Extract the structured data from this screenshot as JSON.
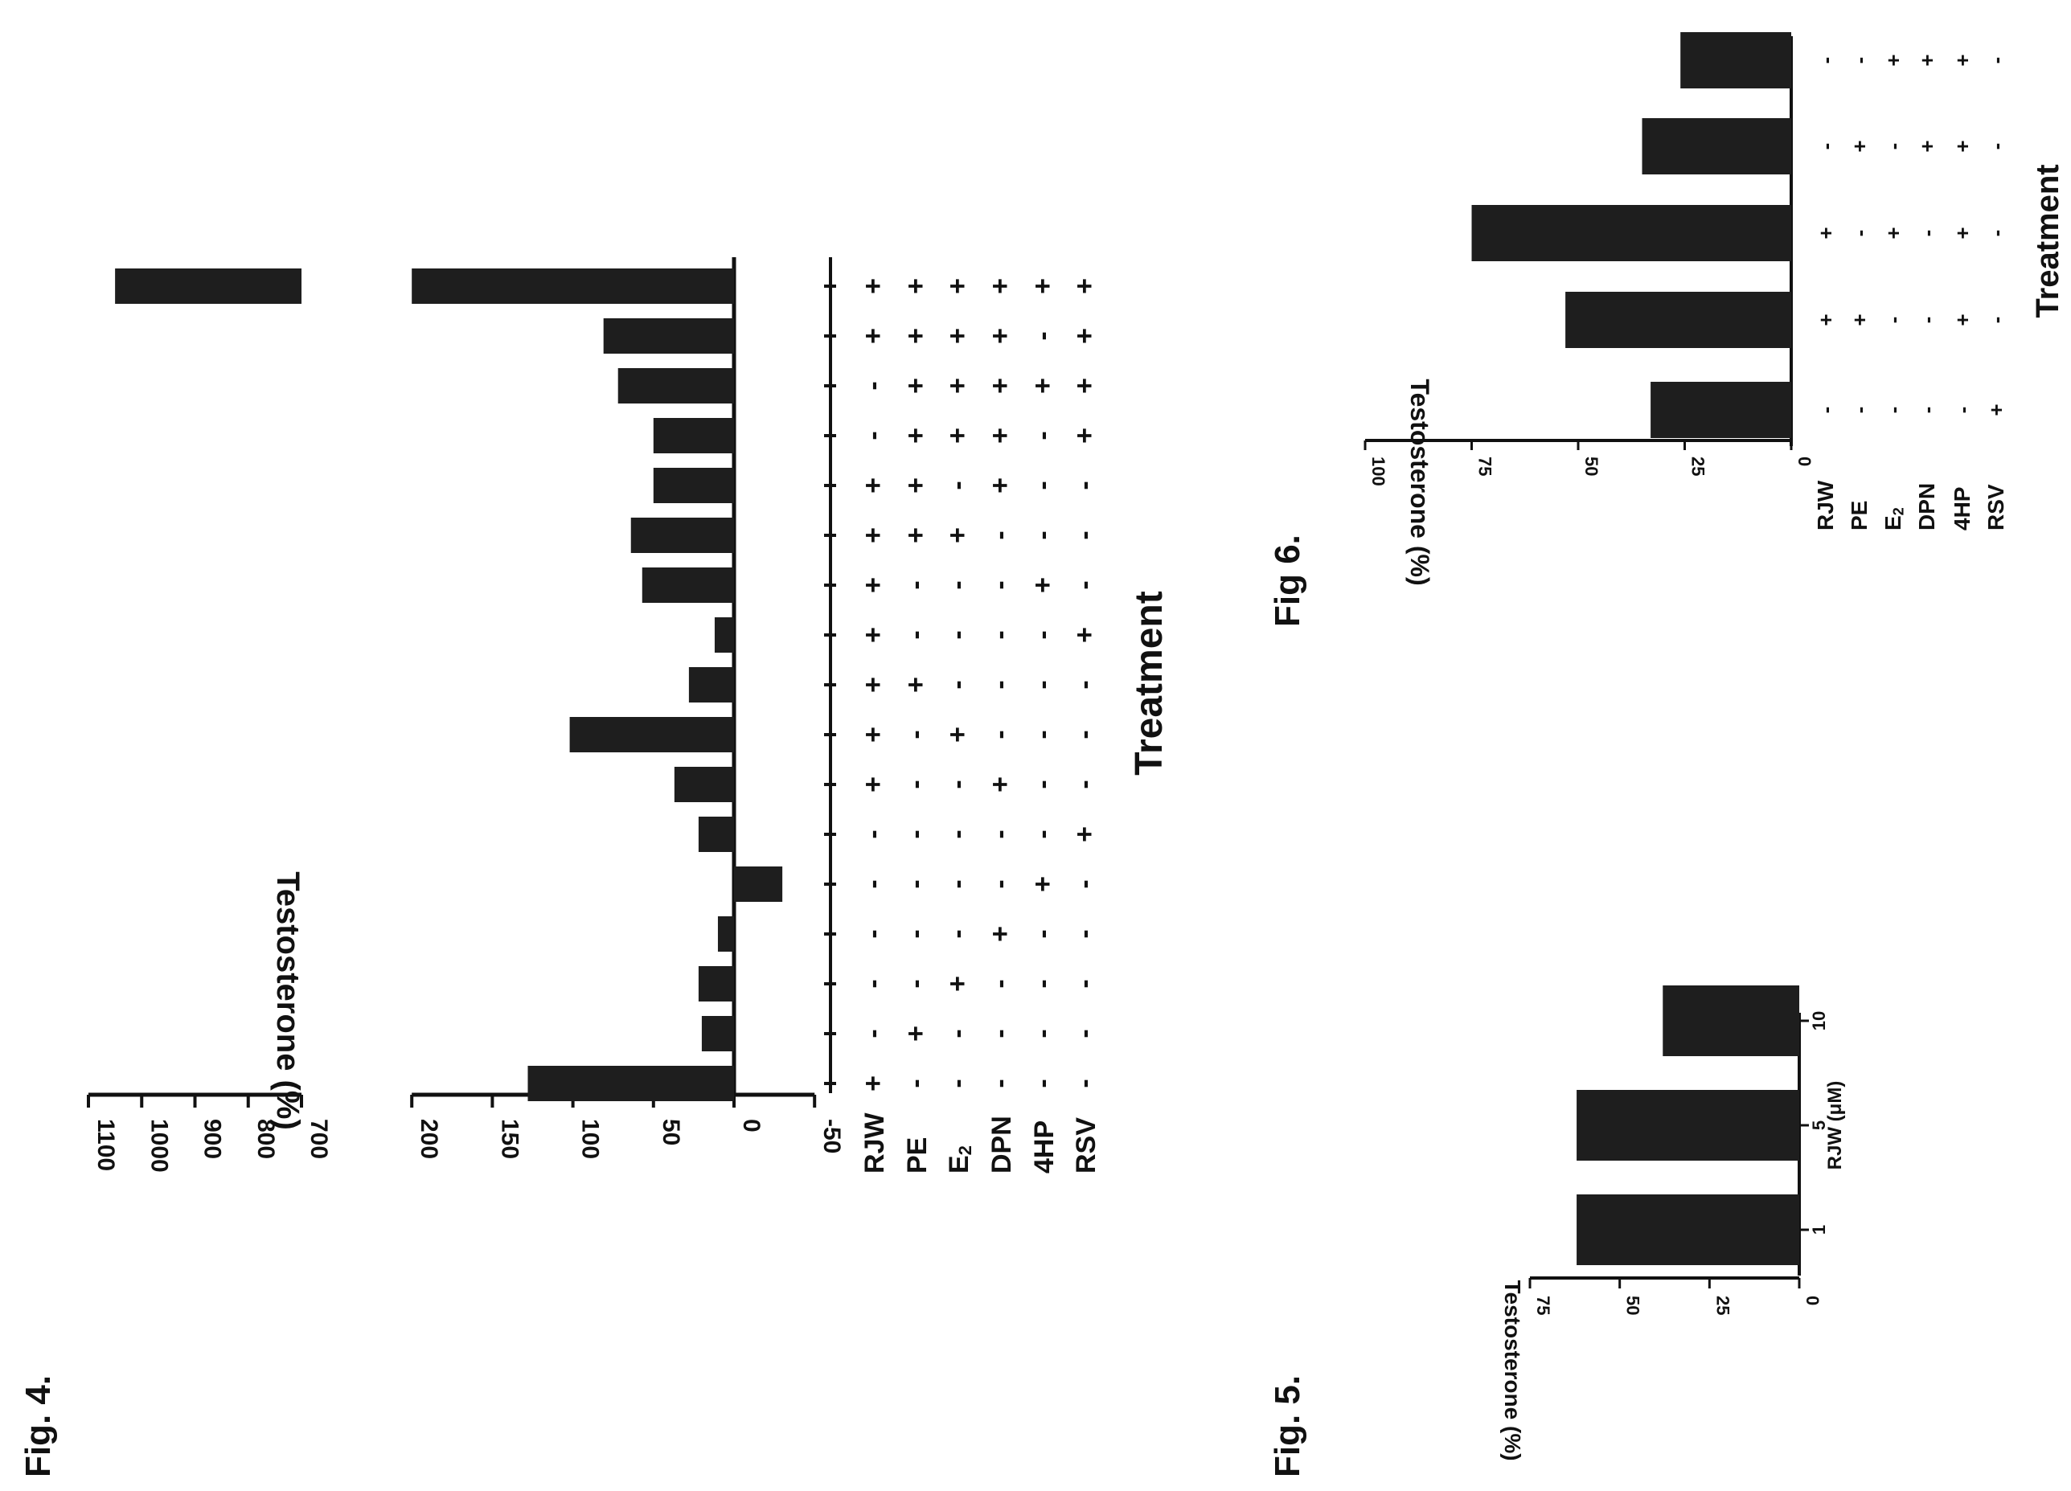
{
  "fig4_label": "Fig. 4.",
  "fig5_label": "Fig. 5.",
  "fig6_label": "Fig 6.",
  "colors": {
    "bar": "#1e1e1e",
    "ink": "#111111",
    "background": "#ffffff"
  },
  "chart_data": [
    {
      "id": "fig4",
      "type": "bar",
      "orientation": "rotated 90 degrees (figure printed sideways)",
      "ylabel": "Testosterone (%)",
      "xlabel": "Treatment",
      "axis_break": true,
      "ylim": [
        -50,
        1100
      ],
      "lower_segment": {
        "range": [
          -50,
          200
        ],
        "ticks": [
          "-50",
          "0",
          "50",
          "100",
          "150",
          "200"
        ],
        "tick_values": [
          -50,
          0,
          50,
          100,
          150,
          200
        ]
      },
      "upper_segment": {
        "range": [
          700,
          1100
        ],
        "ticks": [
          "700",
          "800",
          "900",
          "1000",
          "1100"
        ],
        "tick_values": [
          700,
          800,
          900,
          1000,
          1100
        ]
      },
      "treatment_labels": [
        "RJW",
        "PE",
        "E2",
        "DPN",
        "4HP",
        "RSV"
      ],
      "treatment_matrix": [
        [
          "+",
          "-",
          "-",
          "-",
          "-",
          "-"
        ],
        [
          "-",
          "+",
          "-",
          "-",
          "-",
          "-"
        ],
        [
          "-",
          "-",
          "+",
          "-",
          "-",
          "-"
        ],
        [
          "-",
          "-",
          "-",
          "+",
          "-",
          "-"
        ],
        [
          "-",
          "-",
          "-",
          "-",
          "+",
          "-"
        ],
        [
          "-",
          "-",
          "-",
          "-",
          "-",
          "+"
        ],
        [
          "+",
          "-",
          "-",
          "+",
          "-",
          "-"
        ],
        [
          "+",
          "-",
          "+",
          "-",
          "-",
          "-"
        ],
        [
          "+",
          "+",
          "-",
          "-",
          "-",
          "-"
        ],
        [
          "+",
          "-",
          "-",
          "-",
          "-",
          "+"
        ],
        [
          "+",
          "-",
          "-",
          "-",
          "+",
          "-"
        ],
        [
          "+",
          "+",
          "+",
          "-",
          "-",
          "-"
        ],
        [
          "+",
          "+",
          "-",
          "+",
          "-",
          "-"
        ],
        [
          "-",
          "+",
          "+",
          "+",
          "-",
          "+"
        ],
        [
          "-",
          "+",
          "+",
          "+",
          "+",
          "+"
        ],
        [
          "+",
          "+",
          "+",
          "+",
          "-",
          "+"
        ],
        [
          "+",
          "+",
          "+",
          "+",
          "+",
          "+"
        ]
      ],
      "values": [
        128,
        20,
        22,
        10,
        -30,
        22,
        37,
        102,
        28,
        12,
        57,
        64,
        50,
        50,
        72,
        81,
        1050
      ]
    },
    {
      "id": "fig5",
      "type": "bar",
      "orientation": "rotated 90 degrees (figure printed sideways)",
      "ylabel": "Testosterone (%)",
      "xlabel": "RJW (μM)",
      "ylim": [
        0,
        75
      ],
      "ticks": [
        "0",
        "25",
        "50",
        "75"
      ],
      "tick_values": [
        0,
        25,
        50,
        75
      ],
      "categories": [
        "1",
        "5",
        "10"
      ],
      "values": [
        62,
        62,
        38
      ]
    },
    {
      "id": "fig6",
      "type": "bar",
      "orientation": "rotated 90 degrees (figure printed sideways)",
      "ylabel": "Testosterone (%)",
      "xlabel": "Treatment",
      "ylim": [
        0,
        100
      ],
      "ticks": [
        "0",
        "25",
        "50",
        "75",
        "100"
      ],
      "tick_values": [
        0,
        25,
        50,
        75,
        100
      ],
      "treatment_labels": [
        "RJW",
        "PE",
        "E2",
        "DPN",
        "4HP",
        "RSV"
      ],
      "treatment_matrix": [
        [
          "-",
          "-",
          "-",
          "-",
          "-",
          "+"
        ],
        [
          "+",
          "+",
          "-",
          "-",
          "+",
          "-"
        ],
        [
          "+",
          "-",
          "+",
          "-",
          "+",
          "-"
        ],
        [
          "-",
          "+",
          "-",
          "+",
          "+",
          "-"
        ],
        [
          "-",
          "-",
          "+",
          "+",
          "+",
          "-"
        ]
      ],
      "values": [
        33,
        53,
        75,
        35,
        26
      ]
    }
  ]
}
